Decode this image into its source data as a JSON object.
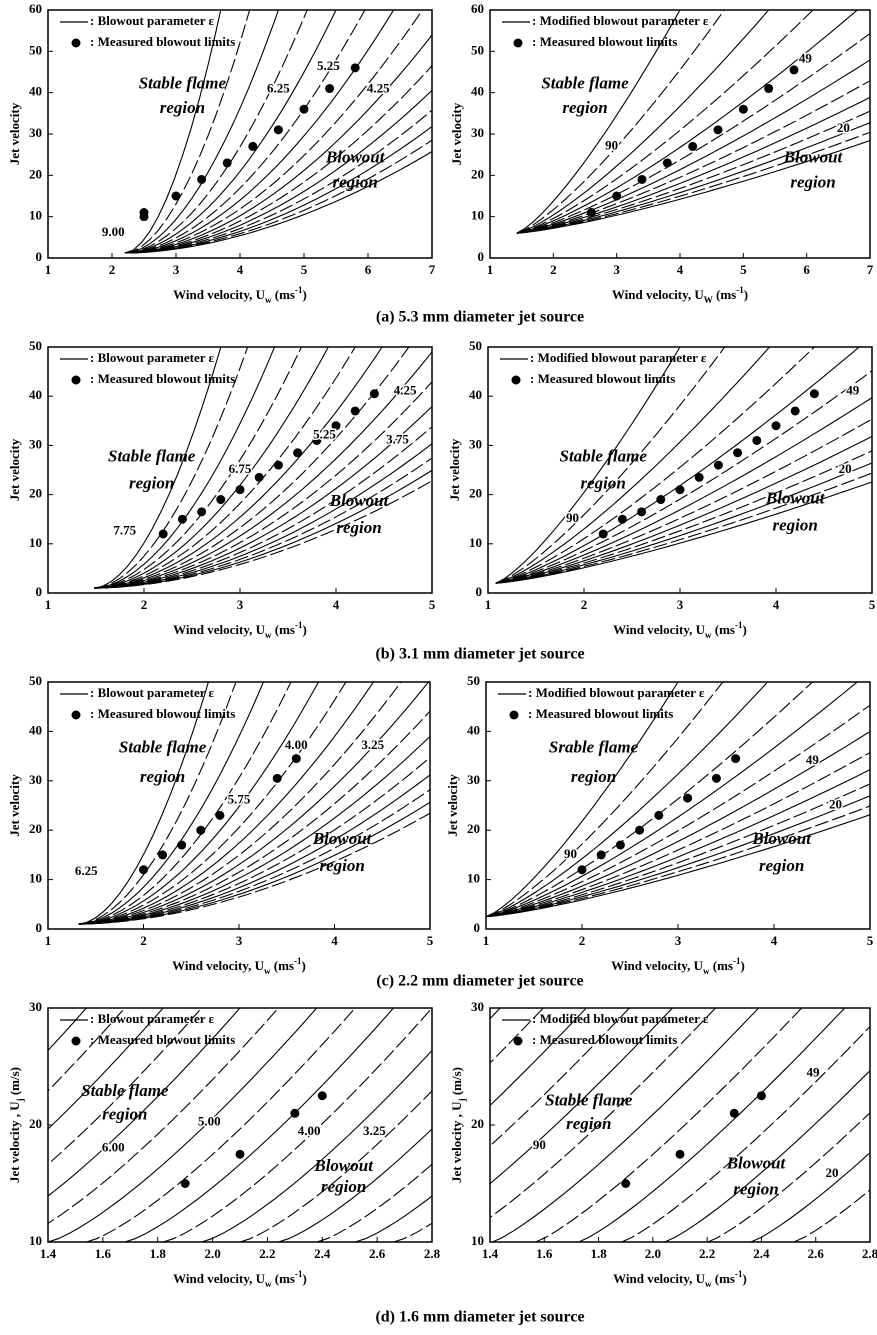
{
  "chart_data": [
    {
      "type": "scatter",
      "xlabel_parts": [
        "Wind velocity, U",
        "w",
        " (ms",
        "-1",
        ")"
      ],
      "ylabel_parts": [
        "Jet velocity"
      ],
      "xlim": [
        1,
        7
      ],
      "ylim": [
        0,
        60
      ],
      "xticks": [
        1,
        2,
        3,
        4,
        5,
        6,
        7
      ],
      "yticks": [
        0,
        10,
        20,
        30,
        40,
        50,
        60
      ],
      "curve_legend": ": Blowout parameter ε",
      "series": [
        {
          "name": ": Measured blowout limits",
          "color": "#000000",
          "x": [
            2.5,
            2.5,
            3,
            3.4,
            3.8,
            4.2,
            4.6,
            5,
            5.4,
            5.8
          ],
          "values": [
            10,
            11,
            15,
            19,
            23,
            27,
            31,
            36,
            41,
            46
          ]
        }
      ],
      "annotations": [
        "Stable flame",
        "region",
        "Blowout",
        "region"
      ],
      "curve_labels": [
        "9.00",
        "6.25",
        "5.25",
        "4.25"
      ]
    },
    {
      "type": "scatter",
      "xlabel_parts": [
        "Wind velocity, U",
        "W",
        " (ms",
        "-1",
        ")"
      ],
      "ylabel_parts": [
        "Jet velocity"
      ],
      "xlim": [
        1,
        7
      ],
      "ylim": [
        0,
        60
      ],
      "xticks": [
        1,
        2,
        3,
        4,
        5,
        6,
        7
      ],
      "yticks": [
        0,
        10,
        20,
        30,
        40,
        50,
        60
      ],
      "curve_legend": ": Modified blowout parameter ε",
      "series": [
        {
          "name": ": Measured blowout limits",
          "color": "#000000",
          "x": [
            2.6,
            3,
            3.4,
            3.8,
            4.2,
            4.6,
            5,
            5.4,
            5.8
          ],
          "values": [
            11,
            15,
            19,
            23,
            27,
            31,
            36,
            41,
            45.5
          ]
        }
      ],
      "annotations": [
        "Stable flame",
        "region",
        "Blowout",
        "region"
      ],
      "curve_labels": [
        "90",
        "49",
        "20"
      ]
    },
    {
      "type": "scatter",
      "xlabel_parts": [
        "Wind velocity, U",
        "w",
        " (ms",
        "-1",
        ")"
      ],
      "ylabel_parts": [
        "Jet velocity"
      ],
      "xlim": [
        1,
        5
      ],
      "ylim": [
        0,
        50
      ],
      "xticks": [
        1,
        2,
        3,
        4,
        5
      ],
      "yticks": [
        0,
        10,
        20,
        30,
        40,
        50
      ],
      "curve_legend": ": Blowout parameter ε",
      "series": [
        {
          "name": ": Measured blowout limits",
          "color": "#000000",
          "x": [
            2.2,
            2.4,
            2.6,
            2.8,
            3,
            3.2,
            3.4,
            3.6,
            3.8,
            4,
            4.2,
            4.4
          ],
          "values": [
            12,
            15,
            16.5,
            19,
            21,
            23.5,
            26,
            28.5,
            31,
            34,
            37,
            40.5
          ]
        }
      ],
      "annotations": [
        "Stable flame",
        "region",
        "Blowout",
        "region"
      ],
      "curve_labels": [
        "7.75",
        "6.75",
        "5.25",
        "4.25",
        "3.75"
      ]
    },
    {
      "type": "scatter",
      "xlabel_parts": [
        "Wind velocity, U",
        "w",
        " (ms",
        "-1",
        ")"
      ],
      "ylabel_parts": [
        "Jet velocity"
      ],
      "xlim": [
        1,
        5
      ],
      "ylim": [
        0,
        50
      ],
      "xticks": [
        1,
        2,
        3,
        4,
        5
      ],
      "yticks": [
        0,
        10,
        20,
        30,
        40,
        50
      ],
      "curve_legend": ": Modified blowout parameter ε",
      "series": [
        {
          "name": ": Measured blowout limits",
          "color": "#000000",
          "x": [
            2.2,
            2.4,
            2.6,
            2.8,
            3,
            3.2,
            3.4,
            3.6,
            3.8,
            4,
            4.2,
            4.4
          ],
          "values": [
            12,
            15,
            16.5,
            19,
            21,
            23.5,
            26,
            28.5,
            31,
            34,
            37,
            40.5
          ]
        }
      ],
      "annotations": [
        "Stable flame",
        "region",
        "Blowout",
        "region"
      ],
      "curve_labels": [
        "90",
        "49",
        "20"
      ]
    },
    {
      "type": "scatter",
      "xlabel_parts": [
        "Wind velocity, U",
        "w",
        " (ms",
        "-1",
        ")"
      ],
      "ylabel_parts": [
        "Jet velocity"
      ],
      "xlim": [
        1,
        5
      ],
      "ylim": [
        0,
        50
      ],
      "xticks": [
        1,
        2,
        3,
        4,
        5
      ],
      "yticks": [
        0,
        10,
        20,
        30,
        40,
        50
      ],
      "curve_legend": ": Blowout parameter ε",
      "series": [
        {
          "name": ": Measured blowout limits",
          "color": "#000000",
          "x": [
            2,
            2.2,
            2.4,
            2.6,
            2.8,
            3.4,
            3.6
          ],
          "values": [
            12,
            15,
            17,
            20,
            23,
            30.5,
            34.5
          ]
        }
      ],
      "annotations": [
        "Stable flame",
        "region",
        "Blowout",
        "region"
      ],
      "curve_labels": [
        "6.25",
        "5.75",
        "4.00",
        "3.25"
      ]
    },
    {
      "type": "scatter",
      "xlabel_parts": [
        "Wind velocity, U",
        "w",
        " (ms",
        "-1",
        ")"
      ],
      "ylabel_parts": [
        "Jet velocity"
      ],
      "xlim": [
        1,
        5
      ],
      "ylim": [
        0,
        50
      ],
      "xticks": [
        1,
        2,
        3,
        4,
        5
      ],
      "yticks": [
        0,
        10,
        20,
        30,
        40,
        50
      ],
      "curve_legend": ": Modified blowout parameter ε",
      "series": [
        {
          "name": ": Measured blowout limits",
          "color": "#000000",
          "x": [
            2,
            2.2,
            2.4,
            2.6,
            2.8,
            3.1,
            3.4,
            3.6
          ],
          "values": [
            12,
            15,
            17,
            20,
            23,
            26.5,
            30.5,
            34.5
          ]
        }
      ],
      "annotations": [
        "Srable flame",
        "region",
        "Blowout",
        "region"
      ],
      "curve_labels": [
        "90",
        "49",
        "20"
      ]
    },
    {
      "type": "scatter",
      "xlabel_parts": [
        "Wind velocity, U",
        "w",
        " (ms",
        "-1",
        ")"
      ],
      "ylabel_parts": [
        "Jet velocity , U",
        "j",
        " (m/s)"
      ],
      "xlim": [
        1.4,
        2.8
      ],
      "ylim": [
        10,
        30
      ],
      "xticks": [
        1.4,
        1.6,
        1.8,
        {
          "value": 2,
          "label": "2.0"
        },
        2.2,
        2.4,
        2.6,
        2.8
      ],
      "yticks": [
        10,
        20,
        30
      ],
      "curve_legend": ": Blowout parameter ε",
      "series": [
        {
          "name": ": Measured blowout limits",
          "color": "#000000",
          "x": [
            1.9,
            2.1,
            2.3,
            2.4
          ],
          "values": [
            15,
            17.5,
            21,
            22.5
          ]
        }
      ],
      "annotations": [
        "Stable flame",
        "region",
        "Blowout",
        "region"
      ],
      "curve_labels": [
        "6.00",
        "5.00",
        "4.00",
        "3.25"
      ]
    },
    {
      "type": "scatter",
      "xlabel_parts": [
        "Wind velocity, U",
        "w",
        " (ms",
        "-1",
        ")"
      ],
      "ylabel_parts": [
        "Jet velocity , U",
        "j",
        " (m/s)"
      ],
      "xlim": [
        1.4,
        2.8
      ],
      "ylim": [
        10,
        30
      ],
      "xticks": [
        1.4,
        1.6,
        1.8,
        {
          "value": 2,
          "label": "2.0"
        },
        2.2,
        2.4,
        2.6,
        2.8
      ],
      "yticks": [
        10,
        20,
        30
      ],
      "curve_legend": ": Modified blowout parameter ε",
      "series": [
        {
          "name": ": Measured blowout limits",
          "color": "#000000",
          "x": [
            1.9,
            2.1,
            2.3,
            2.4
          ],
          "values": [
            15,
            17.5,
            21,
            22.5
          ]
        }
      ],
      "annotations": [
        "Stable flame",
        "region",
        "Blowout",
        "region"
      ],
      "curve_labels": [
        "90",
        "49",
        "20"
      ]
    }
  ],
  "captions": [
    "(a)  5.3 mm diameter jet source",
    "(b)  3.1 mm diameter jet source",
    "(c)  2.2 mm diameter jet source",
    "(d)  1.6 mm diameter jet source"
  ]
}
